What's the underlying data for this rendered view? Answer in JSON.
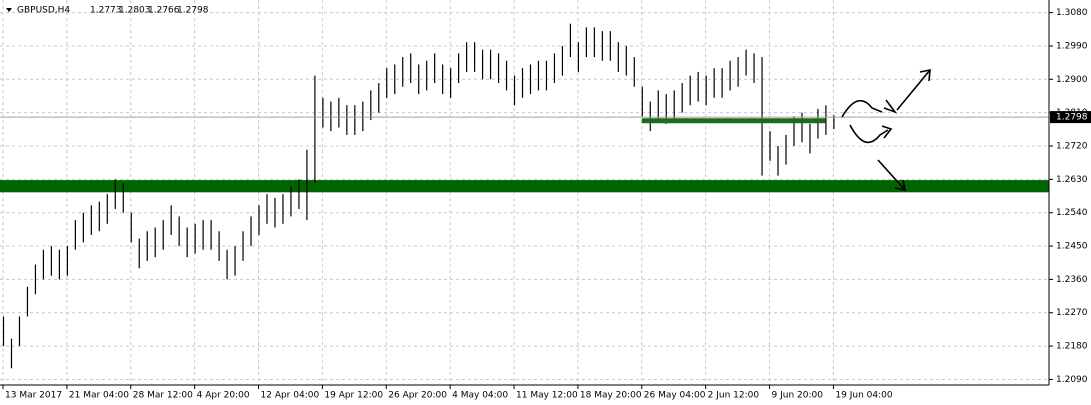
{
  "chart_data": {
    "type": "ohlc",
    "title": "GBPUSD,H4",
    "last_bar": [
      "1.2773",
      "1.2803",
      "1.2766",
      "1.2798"
    ],
    "current_price": {
      "value": 1.2798,
      "label": "1.2798"
    },
    "highs": [
      1.226,
      1.22,
      1.226,
      1.234,
      1.24,
      1.244,
      1.245,
      1.244,
      1.245,
      1.252,
      1.254,
      1.256,
      1.257,
      1.259,
      1.263,
      1.262,
      1.254,
      1.247,
      1.249,
      1.25,
      1.252,
      1.256,
      1.253,
      1.25,
      1.251,
      1.252,
      1.252,
      1.249,
      1.244,
      1.245,
      1.249,
      1.253,
      1.256,
      1.259,
      1.258,
      1.259,
      1.261,
      1.263,
      1.271,
      1.291,
      1.285,
      1.284,
      1.285,
      1.283,
      1.283,
      1.284,
      1.287,
      1.289,
      1.293,
      1.294,
      1.296,
      1.297,
      1.294,
      1.295,
      1.297,
      1.294,
      1.293,
      1.297,
      1.3,
      1.3,
      1.298,
      1.298,
      1.297,
      1.295,
      1.291,
      1.293,
      1.294,
      1.295,
      1.295,
      1.297,
      1.299,
      1.305,
      1.3,
      1.304,
      1.304,
      1.303,
      1.303,
      1.3,
      1.299,
      1.296,
      1.288,
      1.284,
      1.287,
      1.286,
      1.287,
      1.289,
      1.291,
      1.292,
      1.291,
      1.293,
      1.293,
      1.295,
      1.296,
      1.298,
      1.297,
      1.296,
      1.276,
      1.272,
      1.275,
      1.28,
      1.281,
      1.278,
      1.282,
      1.283,
      1.2803
    ],
    "lows": [
      1.218,
      1.212,
      1.218,
      1.226,
      1.232,
      1.236,
      1.237,
      1.236,
      1.237,
      1.244,
      1.246,
      1.248,
      1.249,
      1.251,
      1.255,
      1.254,
      1.246,
      1.239,
      1.241,
      1.242,
      1.244,
      1.248,
      1.245,
      1.242,
      1.243,
      1.244,
      1.244,
      1.241,
      1.236,
      1.237,
      1.241,
      1.245,
      1.248,
      1.251,
      1.25,
      1.251,
      1.253,
      1.255,
      1.252,
      1.262,
      1.277,
      1.276,
      1.277,
      1.275,
      1.275,
      1.276,
      1.279,
      1.281,
      1.285,
      1.286,
      1.288,
      1.289,
      1.286,
      1.287,
      1.289,
      1.286,
      1.285,
      1.289,
      1.292,
      1.292,
      1.29,
      1.29,
      1.289,
      1.287,
      1.283,
      1.285,
      1.286,
      1.287,
      1.287,
      1.289,
      1.291,
      1.296,
      1.292,
      1.296,
      1.296,
      1.295,
      1.295,
      1.292,
      1.291,
      1.288,
      1.28,
      1.276,
      1.279,
      1.278,
      1.279,
      1.281,
      1.283,
      1.284,
      1.283,
      1.285,
      1.285,
      1.287,
      1.288,
      1.291,
      1.289,
      1.264,
      1.268,
      1.264,
      1.267,
      1.272,
      1.273,
      1.27,
      1.274,
      1.275,
      1.2766
    ],
    "color": "#000000",
    "zone": {
      "from": 1.2595,
      "to": 1.2628,
      "color": "#006400"
    },
    "level": {
      "value": 1.2788,
      "xrange": [
        80,
        103
      ],
      "color": "#1e6b1e"
    },
    "xlim": [
      0,
      131
    ],
    "xticks": [
      {
        "value": 0,
        "label": "13 Mar 2017"
      },
      {
        "value": 8,
        "label": "21 Mar 04:00"
      },
      {
        "value": 16,
        "label": "28 Mar 12:00"
      },
      {
        "value": 24,
        "label": "4 Apr 20:00"
      },
      {
        "value": 32,
        "label": "12 Apr 04:00"
      },
      {
        "value": 40,
        "label": "19 Apr 12:00"
      },
      {
        "value": 48,
        "label": "26 Apr 20:00"
      },
      {
        "value": 56,
        "label": "4 May 04:00"
      },
      {
        "value": 64,
        "label": "11 May 12:00"
      },
      {
        "value": 72,
        "label": "18 May 20:00"
      },
      {
        "value": 80,
        "label": "26 May 04:00"
      },
      {
        "value": 88,
        "label": "2 Jun 12:00"
      },
      {
        "value": 96,
        "label": "9 Jun 20:00"
      },
      {
        "value": 104,
        "label": "19 Jun 04:00"
      }
    ],
    "ylim": [
      1.2075,
      1.3114
    ],
    "yticks": [
      {
        "value": 1.308,
        "label": "1.3080"
      },
      {
        "value": 1.299,
        "label": "1.2990"
      },
      {
        "value": 1.29,
        "label": "1.2900"
      },
      {
        "value": 1.281,
        "label": "1.2810"
      },
      {
        "value": 1.272,
        "label": "1.2720"
      },
      {
        "value": 1.263,
        "label": "1.2630"
      },
      {
        "value": 1.254,
        "label": "1.2540"
      },
      {
        "value": 1.245,
        "label": "1.2450"
      },
      {
        "value": 1.236,
        "label": "1.2360"
      },
      {
        "value": 1.227,
        "label": "1.2270"
      },
      {
        "value": 1.218,
        "label": "1.2180"
      },
      {
        "value": 1.209,
        "label": "1.2090"
      }
    ],
    "grid": true
  }
}
